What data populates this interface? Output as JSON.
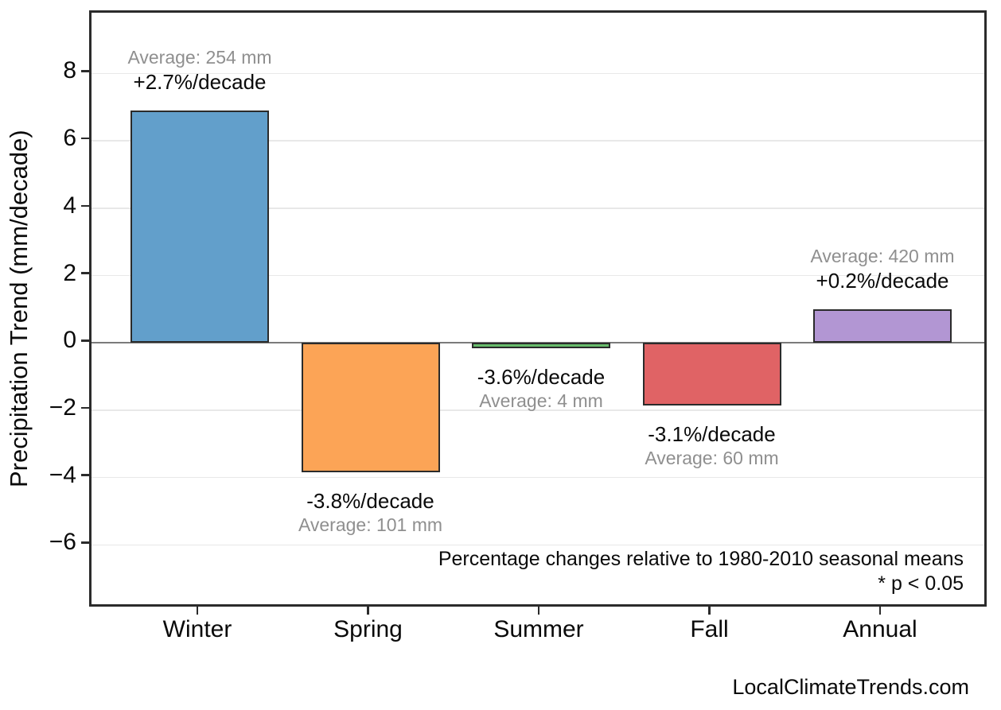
{
  "watermark": "LocalClimateTrends.com",
  "chart_data": {
    "type": "bar",
    "title": "",
    "xlabel": "",
    "ylabel": "Precipitation Trend (mm/decade)",
    "categories": [
      "Winter",
      "Spring",
      "Summer",
      "Fall",
      "Annual"
    ],
    "values": [
      6.9,
      -3.85,
      -0.15,
      -1.85,
      1.0
    ],
    "bar_colors": [
      "#629fcb",
      "#fca456",
      "#67bc6b",
      "#e06365",
      "#b296d3"
    ],
    "bar_edge_color": "#2b2b2b",
    "annotations": [
      {
        "percent": "+2.7%/decade",
        "average": "Average: 254 mm"
      },
      {
        "percent": "-3.8%/decade",
        "average": "Average: 101 mm"
      },
      {
        "percent": "-3.6%/decade",
        "average": "Average: 4 mm"
      },
      {
        "percent": "-3.1%/decade",
        "average": "Average: 60 mm"
      },
      {
        "percent": "+0.2%/decade",
        "average": "Average: 420 mm"
      }
    ],
    "yticks": [
      8,
      6,
      4,
      2,
      0,
      -2,
      -4,
      -6
    ],
    "ytick_labels": [
      "8",
      "6",
      "4",
      "2",
      "0",
      "−2",
      "−4",
      "−6"
    ],
    "ylim": [
      -7.9,
      9.8
    ],
    "grid": true,
    "zero_line": true,
    "legend": "none",
    "footnote_line1": "Percentage changes relative to 1980-2010 seasonal means",
    "footnote_line2": "* p < 0.05",
    "colors": {
      "grid": "#e8e8e8",
      "zero_line": "#7b7b7b",
      "spine": "#2b2b2b",
      "annotation_percent": "#0a0a0a",
      "annotation_average": "#8f8f8f",
      "tick_text": "#0a0a0a",
      "background": "#ffffff"
    }
  }
}
